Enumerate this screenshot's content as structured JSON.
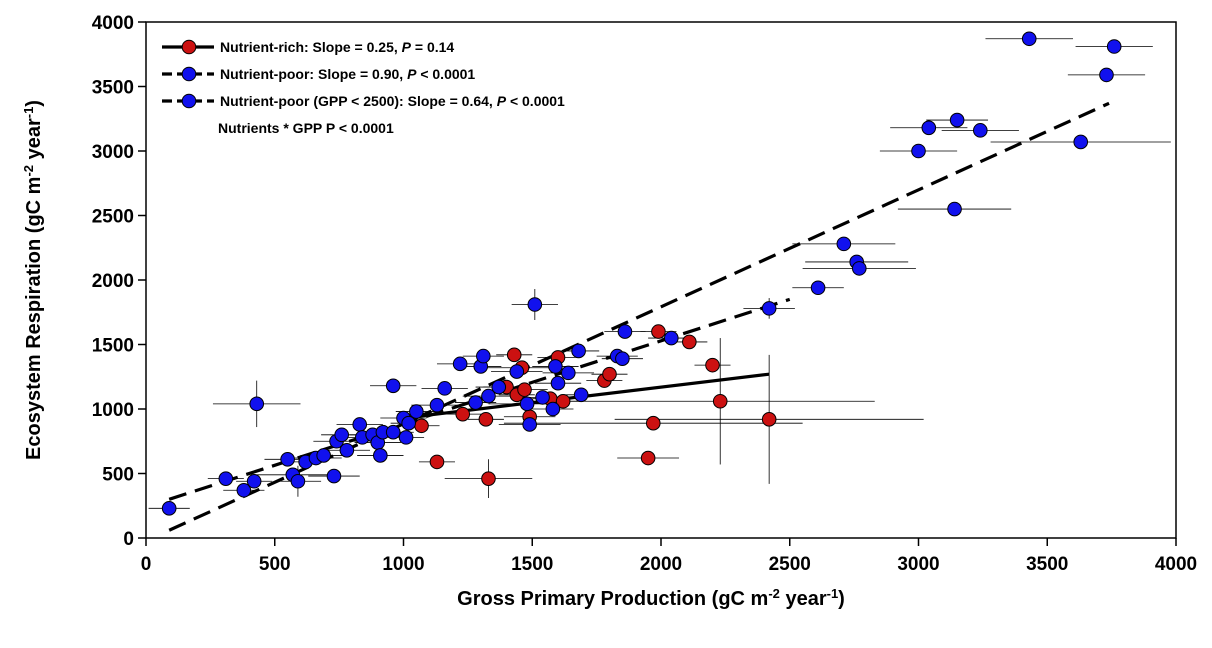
{
  "chart_data": {
    "type": "scatter",
    "xlabel": "Gross Primary Production (gC m-2 year-1)",
    "ylabel": "Ecosystem Respiration (gC m-2 year-1)",
    "xlim": [
      0,
      4000
    ],
    "ylim": [
      0,
      4000
    ],
    "x_ticks": [
      0,
      500,
      1000,
      1500,
      2000,
      2500,
      3000,
      3500,
      4000
    ],
    "y_ticks": [
      0,
      500,
      1000,
      1500,
      2000,
      2500,
      3000,
      3500,
      4000
    ],
    "grid": false,
    "legend_placement": "top-left",
    "colors": {
      "rich": "#cc1111",
      "poor": "#1111ee",
      "edge": "#000000"
    },
    "legend": [
      {
        "marker": "rich",
        "dash": "solid",
        "parts": [
          {
            "t": "Nutrient-rich: Slope = 0.25, "
          },
          {
            "t": "P",
            "italic": true
          },
          {
            "t": " = 0.14"
          }
        ]
      },
      {
        "marker": "poor",
        "dash": "dashed",
        "parts": [
          {
            "t": "Nutrient-poor: Slope = 0.90, "
          },
          {
            "t": "P",
            "italic": true
          },
          {
            "t": " < 0.0001"
          }
        ]
      },
      {
        "marker": "poor",
        "dash": "dashed",
        "parts": [
          {
            "t": "Nutrient-poor (GPP < 2500): Slope = 0.64, "
          },
          {
            "t": "P",
            "italic": true
          },
          {
            "t": " < 0.0001"
          }
        ]
      }
    ],
    "annotation": "Nutrients * GPP P < 0.0001",
    "lines": [
      {
        "name": "Nutrient-rich",
        "dash": "solid",
        "x": [
          1000,
          2420
        ],
        "y": [
          930,
          1270
        ]
      },
      {
        "name": "Nutrient-poor",
        "dash": "dashed",
        "x": [
          90,
          3740
        ],
        "y": [
          60,
          3370
        ]
      },
      {
        "name": "Nutrient-poor (GPP < 2500)",
        "dash": "dashed",
        "x": [
          90,
          2500
        ],
        "y": [
          300,
          1850
        ]
      }
    ],
    "series": [
      {
        "name": "Nutrient-rich",
        "group": "rich",
        "points": [
          [
            1070,
            870,
            70,
            0
          ],
          [
            1130,
            590,
            70,
            0
          ],
          [
            1230,
            960,
            90,
            0
          ],
          [
            1320,
            920,
            70,
            0
          ],
          [
            1330,
            460,
            170,
            150
          ],
          [
            1400,
            1170,
            90,
            0
          ],
          [
            1430,
            1420,
            70,
            0
          ],
          [
            1440,
            1110,
            70,
            0
          ],
          [
            1460,
            1320,
            150,
            0
          ],
          [
            1470,
            1150,
            90,
            0
          ],
          [
            1490,
            940,
            100,
            0
          ],
          [
            1570,
            1080,
            70,
            0
          ],
          [
            1600,
            1400,
            80,
            0
          ],
          [
            1620,
            1060,
            70,
            0
          ],
          [
            1780,
            1220,
            70,
            0
          ],
          [
            1800,
            1270,
            70,
            0
          ],
          [
            1950,
            620,
            120,
            0
          ],
          [
            1970,
            890,
            580,
            0
          ],
          [
            1990,
            1600,
            70,
            0
          ],
          [
            2110,
            1520,
            70,
            0
          ],
          [
            2200,
            1340,
            70,
            0
          ],
          [
            2230,
            1060,
            600,
            490
          ],
          [
            2420,
            920,
            600,
            500
          ]
        ]
      },
      {
        "name": "Nutrient-poor",
        "group": "poor",
        "points": [
          [
            90,
            230,
            80,
            0
          ],
          [
            310,
            460,
            70,
            0
          ],
          [
            380,
            370,
            80,
            0
          ],
          [
            420,
            440,
            70,
            0
          ],
          [
            430,
            1040,
            170,
            180
          ],
          [
            550,
            610,
            90,
            0
          ],
          [
            570,
            490,
            150,
            0
          ],
          [
            590,
            440,
            90,
            120
          ],
          [
            620,
            590,
            80,
            0
          ],
          [
            660,
            620,
            100,
            0
          ],
          [
            690,
            640,
            90,
            0
          ],
          [
            730,
            480,
            100,
            0
          ],
          [
            740,
            750,
            90,
            0
          ],
          [
            760,
            800,
            80,
            0
          ],
          [
            780,
            680,
            90,
            0
          ],
          [
            830,
            880,
            90,
            0
          ],
          [
            840,
            780,
            80,
            0
          ],
          [
            880,
            800,
            90,
            0
          ],
          [
            900,
            740,
            90,
            0
          ],
          [
            910,
            640,
            90,
            0
          ],
          [
            920,
            820,
            90,
            0
          ],
          [
            960,
            1180,
            90,
            0
          ],
          [
            960,
            820,
            80,
            0
          ],
          [
            1000,
            930,
            90,
            0
          ],
          [
            1010,
            780,
            70,
            0
          ],
          [
            1020,
            890,
            70,
            0
          ],
          [
            1050,
            980,
            80,
            0
          ],
          [
            1130,
            1030,
            100,
            0
          ],
          [
            1160,
            1160,
            90,
            0
          ],
          [
            1220,
            1350,
            90,
            0
          ],
          [
            1280,
            1050,
            80,
            0
          ],
          [
            1300,
            1330,
            80,
            0
          ],
          [
            1310,
            1410,
            80,
            0
          ],
          [
            1330,
            1100,
            100,
            0
          ],
          [
            1370,
            1170,
            90,
            0
          ],
          [
            1440,
            1290,
            100,
            0
          ],
          [
            1480,
            1040,
            150,
            0
          ],
          [
            1490,
            880,
            120,
            0
          ],
          [
            1510,
            1810,
            90,
            120
          ],
          [
            1540,
            1090,
            100,
            0
          ],
          [
            1580,
            1000,
            80,
            0
          ],
          [
            1590,
            1330,
            90,
            0
          ],
          [
            1600,
            1200,
            90,
            0
          ],
          [
            1640,
            1280,
            100,
            0
          ],
          [
            1680,
            1450,
            80,
            0
          ],
          [
            1690,
            1110,
            80,
            0
          ],
          [
            1830,
            1410,
            80,
            0
          ],
          [
            1850,
            1390,
            80,
            0
          ],
          [
            1860,
            1600,
            80,
            0
          ],
          [
            2040,
            1550,
            90,
            0
          ],
          [
            2420,
            1780,
            100,
            80
          ],
          [
            2610,
            1940,
            100,
            0
          ],
          [
            2710,
            2280,
            200,
            0
          ],
          [
            2760,
            2140,
            200,
            0
          ],
          [
            2770,
            2090,
            220,
            0
          ],
          [
            3000,
            3000,
            150,
            0
          ],
          [
            3040,
            3180,
            150,
            0
          ],
          [
            3140,
            2550,
            220,
            0
          ],
          [
            3150,
            3240,
            120,
            0
          ],
          [
            3240,
            3160,
            150,
            0
          ],
          [
            3430,
            3870,
            170,
            0
          ],
          [
            3630,
            3070,
            350,
            0
          ],
          [
            3730,
            3590,
            150,
            0
          ],
          [
            3760,
            3810,
            150,
            0
          ]
        ]
      }
    ]
  }
}
